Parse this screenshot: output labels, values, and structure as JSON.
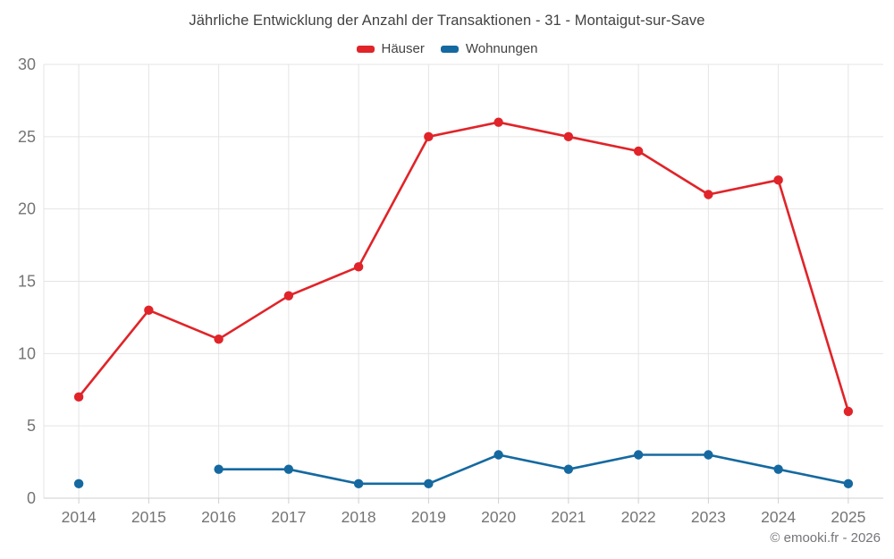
{
  "footer": "© emooki.fr - 2026",
  "colors": {
    "haeuser": "#e02429",
    "wohnungen": "#1569a0",
    "grid": "#e4e4e4",
    "axis": "#cfcfcf",
    "tick_label": "#757575",
    "title_text": "#424242"
  },
  "chart_data": {
    "type": "line",
    "title": "Jährliche Entwicklung der Anzahl der Transaktionen - 31 - Montaigut-sur-Save",
    "categories": [
      "2014",
      "2015",
      "2016",
      "2017",
      "2018",
      "2019",
      "2020",
      "2021",
      "2022",
      "2023",
      "2024",
      "2025"
    ],
    "series": [
      {
        "name": "Häuser",
        "color": "#e02429",
        "values": [
          7,
          13,
          11,
          14,
          16,
          25,
          26,
          25,
          24,
          21,
          22,
          6
        ]
      },
      {
        "name": "Wohnungen",
        "color": "#1569a0",
        "values": [
          1,
          null,
          2,
          2,
          1,
          1,
          3,
          2,
          3,
          3,
          2,
          1
        ]
      }
    ],
    "ylim": [
      0,
      30
    ],
    "yticks": [
      0,
      5,
      10,
      15,
      20,
      25,
      30
    ],
    "xlabel": "",
    "ylabel": "",
    "grid": true,
    "legend_position": "top"
  }
}
